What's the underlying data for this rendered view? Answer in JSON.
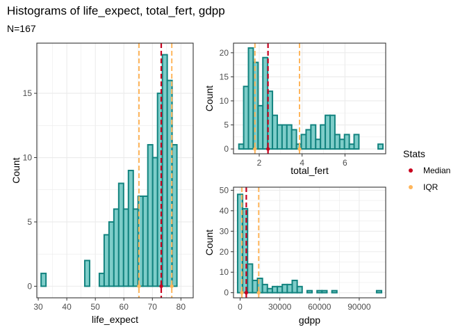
{
  "title": "Histograms of life_expect, total_fert, gdpp",
  "subtitle": "N=167",
  "legend": {
    "title": "Stats",
    "items": [
      {
        "label": "Median",
        "color": "#c8001e"
      },
      {
        "label": "IQR",
        "color": "#ffb65c"
      }
    ]
  },
  "colors": {
    "bar_fill": "#7ecdc9",
    "bar_stroke": "#12837f",
    "grid": "#ebebeb",
    "panel_border": "#333333"
  },
  "chart_data": [
    {
      "type": "histogram",
      "xlabel": "life_expect",
      "ylabel": "Count",
      "xlim": [
        29.5,
        84.3
      ],
      "ylim": [
        -0.9,
        18.9
      ],
      "x_ticks": [
        30,
        40,
        50,
        60,
        70,
        80
      ],
      "y_ticks": [
        0,
        5,
        10,
        15
      ],
      "bin_width": 1.7,
      "bins_start": 31,
      "counts": [
        1,
        0,
        0,
        0,
        0,
        0,
        0,
        0,
        0,
        2,
        0,
        0,
        1,
        4,
        5,
        6,
        8,
        6,
        9,
        6,
        7,
        7,
        11,
        10,
        15,
        18,
        16,
        11
      ],
      "median": 73.1,
      "iqr": [
        65.3,
        76.8
      ],
      "median_marker": 73.1,
      "iqr_markers": [
        65.3,
        76.8
      ]
    },
    {
      "type": "histogram",
      "xlabel": "total_fert",
      "ylabel": "Count",
      "xlim": [
        0.8,
        7.9
      ],
      "ylim": [
        -1,
        22
      ],
      "x_ticks": [
        2,
        4,
        6
      ],
      "y_ticks": [
        0,
        5,
        10,
        15,
        20
      ],
      "bin_width": 0.224,
      "bins_start": 1.05,
      "counts": [
        1,
        13,
        21,
        18,
        9,
        19,
        12,
        7,
        5,
        5,
        5,
        4,
        1,
        3,
        4,
        5,
        2,
        5,
        7,
        7,
        3,
        2,
        3,
        1,
        3,
        0,
        0,
        0,
        0,
        1
      ],
      "median": 2.41,
      "iqr": [
        1.8,
        3.88
      ],
      "median_marker": 2.41,
      "iqr_markers": [
        1.8,
        3.88
      ]
    },
    {
      "type": "histogram",
      "xlabel": "gdpp",
      "ylabel": "Count",
      "xlim": [
        -5000,
        110000
      ],
      "ylim": [
        -2.5,
        51.5
      ],
      "x_ticks": [
        0,
        30000,
        60000,
        90000
      ],
      "x_tick_labels": [
        "0",
        "30000",
        "60000",
        "90000"
      ],
      "y_ticks": [
        0,
        10,
        20,
        30,
        40,
        50
      ],
      "bin_width": 3750,
      "bins_start": -1875,
      "counts": [
        48,
        41,
        14,
        6,
        7,
        4,
        2,
        3,
        3,
        4,
        4,
        6,
        3,
        0,
        1,
        0,
        1,
        1,
        0,
        1,
        0,
        0,
        0,
        0,
        0,
        0,
        0,
        0,
        1
      ],
      "median": 4660,
      "iqr": [
        1330,
        14050
      ],
      "median_marker": 4660,
      "iqr_markers": [
        1330,
        14050
      ]
    }
  ]
}
